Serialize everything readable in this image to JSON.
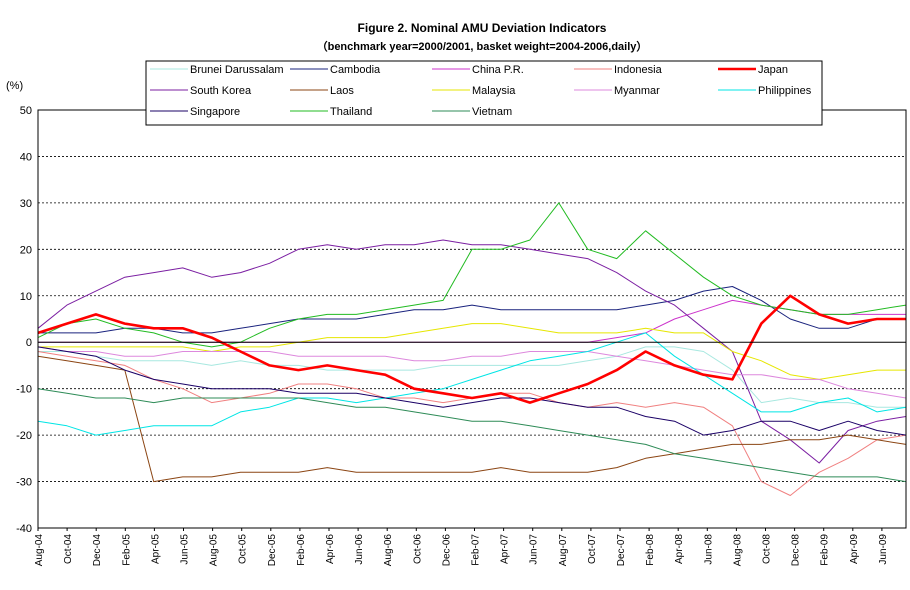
{
  "chart_data": {
    "type": "line",
    "title": "Figure 2. Nominal AMU Deviation Indicators",
    "subtitle": "（benchmark year=2000/2001, basket weight=2004-2006,daily）",
    "ylabel": "(%)",
    "ylim": [
      -40,
      50
    ],
    "yticks": [
      50,
      40,
      30,
      20,
      10,
      0,
      -10,
      -20,
      -30,
      -40
    ],
    "grid": "horizontal dashed",
    "legend_position": "top",
    "x_tick_labels": [
      "Aug-04",
      "Oct-04",
      "Dec-04",
      "Feb-05",
      "Apr-05",
      "Jun-05",
      "Aug-05",
      "Oct-05",
      "Dec-05",
      "Feb-06",
      "Apr-06",
      "Jun-06",
      "Aug-06",
      "Oct-06",
      "Dec-06",
      "Feb-07",
      "Apr-07",
      "Jun-07",
      "Aug-07",
      "Oct-07",
      "Dec-07",
      "Feb-08",
      "Apr-08",
      "Jun-08",
      "Aug-08",
      "Oct-08",
      "Dec-08",
      "Feb-09",
      "Apr-09",
      "Jun-09"
    ],
    "series": [
      {
        "name": "Brunei Darussalam",
        "color": "#a8e8e0",
        "width": 1,
        "values": [
          -2,
          -2,
          -3,
          -4,
          -4,
          -4,
          -5,
          -4,
          -5,
          -5,
          -6,
          -6,
          -6,
          -6,
          -5,
          -5,
          -5,
          -5,
          -5,
          -4,
          -3,
          -1,
          -1,
          -2,
          -6,
          -13,
          -12,
          -13,
          -13,
          -14,
          -14
        ]
      },
      {
        "name": "Cambodia",
        "color": "#1a237e",
        "width": 1,
        "values": [
          2,
          2,
          2,
          3,
          3,
          2,
          2,
          3,
          4,
          5,
          5,
          5,
          6,
          7,
          7,
          8,
          7,
          7,
          7,
          7,
          7,
          8,
          9,
          11,
          12,
          9,
          5,
          3,
          3,
          5,
          5
        ]
      },
      {
        "name": "China P.R.",
        "color": "#cc33cc",
        "width": 1,
        "values": [
          0,
          0,
          0,
          0,
          0,
          0,
          0,
          0,
          0,
          0,
          0,
          0,
          0,
          0,
          0,
          0,
          0,
          0,
          0,
          0,
          1,
          2,
          5,
          7,
          9,
          8,
          7,
          6,
          6,
          6,
          6
        ]
      },
      {
        "name": "Indonesia",
        "color": "#f08080",
        "width": 1,
        "values": [
          -2,
          -3,
          -4,
          -5,
          -8,
          -10,
          -13,
          -12,
          -11,
          -9,
          -9,
          -10,
          -12,
          -12,
          -13,
          -12,
          -11,
          -11,
          -13,
          -14,
          -13,
          -14,
          -13,
          -14,
          -18,
          -30,
          -33,
          -28,
          -25,
          -21,
          -20
        ]
      },
      {
        "name": "Japan",
        "color": "#ff0000",
        "width": 2.6,
        "values": [
          2,
          4,
          6,
          4,
          3,
          3,
          1,
          -2,
          -5,
          -6,
          -5,
          -6,
          -7,
          -10,
          -11,
          -12,
          -11,
          -13,
          -11,
          -9,
          -6,
          -2,
          -5,
          -7,
          -8,
          4,
          10,
          6,
          4,
          5,
          5
        ]
      },
      {
        "name": "South Korea",
        "color": "#7b1fa2",
        "width": 1,
        "values": [
          3,
          8,
          11,
          14,
          15,
          16,
          14,
          15,
          17,
          20,
          21,
          20,
          21,
          21,
          22,
          21,
          21,
          20,
          19,
          18,
          15,
          11,
          8,
          3,
          -2,
          -17,
          -21,
          -26,
          -19,
          -17,
          -16
        ]
      },
      {
        "name": "Laos",
        "color": "#8b4513",
        "width": 1,
        "values": [
          -3,
          -4,
          -5,
          -6,
          -30,
          -29,
          -29,
          -28,
          -28,
          -28,
          -27,
          -28,
          -28,
          -28,
          -28,
          -28,
          -27,
          -28,
          -28,
          -28,
          -27,
          -25,
          -24,
          -23,
          -22,
          -22,
          -21,
          -21,
          -20,
          -21,
          -22
        ]
      },
      {
        "name": "Malaysia",
        "color": "#e6e600",
        "width": 1,
        "values": [
          -1,
          -1,
          -1,
          -1,
          -1,
          -1,
          -2,
          -1,
          -1,
          0,
          1,
          1,
          1,
          2,
          3,
          4,
          4,
          3,
          2,
          2,
          2,
          3,
          2,
          2,
          -2,
          -4,
          -7,
          -8,
          -7,
          -6,
          -6
        ]
      },
      {
        "name": "Myanmar",
        "color": "#dd88dd",
        "width": 1,
        "values": [
          -1,
          -2,
          -2,
          -3,
          -3,
          -2,
          -2,
          -2,
          -2,
          -3,
          -3,
          -3,
          -3,
          -4,
          -4,
          -3,
          -3,
          -2,
          -2,
          -2,
          -3,
          -4,
          -5,
          -6,
          -7,
          -7,
          -8,
          -8,
          -10,
          -11,
          -12
        ]
      },
      {
        "name": "Philippines",
        "color": "#00e5e5",
        "width": 1,
        "values": [
          -17,
          -18,
          -20,
          -19,
          -18,
          -18,
          -18,
          -15,
          -14,
          -12,
          -12,
          -13,
          -12,
          -11,
          -10,
          -8,
          -6,
          -4,
          -3,
          -2,
          0,
          2,
          -3,
          -7,
          -11,
          -15,
          -15,
          -13,
          -12,
          -15,
          -14
        ]
      },
      {
        "name": "Singapore",
        "color": "#1a0066",
        "width": 1,
        "values": [
          -1,
          -2,
          -3,
          -6,
          -8,
          -9,
          -10,
          -10,
          -10,
          -11,
          -11,
          -11,
          -12,
          -13,
          -14,
          -13,
          -12,
          -12,
          -13,
          -14,
          -14,
          -16,
          -17,
          -20,
          -19,
          -17,
          -17,
          -19,
          -17,
          -19,
          -20
        ]
      },
      {
        "name": "Thailand",
        "color": "#22bb22",
        "width": 1,
        "values": [
          1,
          4,
          5,
          3,
          2,
          0,
          -1,
          0,
          3,
          5,
          6,
          6,
          7,
          8,
          9,
          20,
          20,
          22,
          30,
          20,
          18,
          24,
          19,
          14,
          10,
          8,
          7,
          6,
          6,
          7,
          8
        ]
      },
      {
        "name": "Vietnam",
        "color": "#2e8b57",
        "width": 1,
        "values": [
          -10,
          -11,
          -12,
          -12,
          -13,
          -12,
          -12,
          -12,
          -12,
          -12,
          -13,
          -14,
          -14,
          -15,
          -16,
          -17,
          -17,
          -18,
          -19,
          -20,
          -21,
          -22,
          -24,
          -25,
          -26,
          -27,
          -28,
          -29,
          -29,
          -29,
          -30
        ]
      }
    ]
  }
}
